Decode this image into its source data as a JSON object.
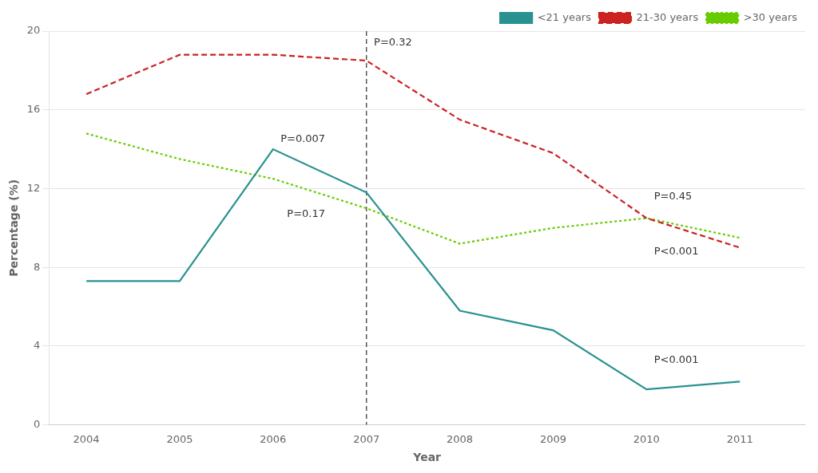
{
  "chart_data": {
    "type": "line",
    "x": [
      2004,
      2005,
      2006,
      2007,
      2008,
      2009,
      2010,
      2011
    ],
    "series": [
      {
        "name": "<21 years",
        "color": "#2a9191",
        "line_style": "solid",
        "values": [
          7.3,
          7.3,
          14.0,
          11.8,
          5.8,
          4.8,
          1.8,
          2.2
        ]
      },
      {
        "name": "21-30 years",
        "color": "#cc2222",
        "line_style": "dashed",
        "values": [
          16.8,
          18.8,
          18.8,
          18.5,
          15.5,
          13.8,
          10.5,
          9.0
        ]
      },
      {
        "name": ">30 years",
        "color": "#66cc00",
        "line_style": "dotted",
        "values": [
          14.8,
          13.5,
          12.5,
          11.0,
          9.2,
          10.0,
          10.5,
          9.5
        ]
      }
    ],
    "xlabel": "Year",
    "ylabel": "Percentage (%)",
    "xlim": [
      2003.6,
      2011.7
    ],
    "xticks": [
      2004,
      2005,
      2006,
      2007,
      2008,
      2009,
      2010,
      2011
    ],
    "ylim": [
      0,
      20
    ],
    "yticks": [
      0,
      4,
      8,
      12,
      16,
      20
    ],
    "vlines": [
      2007
    ],
    "annotations": [
      {
        "text": "P=0.32",
        "x": 2007.08,
        "y": 19.4
      },
      {
        "text": "P=0.007",
        "x": 2006.08,
        "y": 14.5
      },
      {
        "text": "P=0.17",
        "x": 2006.15,
        "y": 10.7
      },
      {
        "text": "P=0.45",
        "x": 2010.08,
        "y": 11.6
      },
      {
        "text": "P<0.001",
        "x": 2010.08,
        "y": 8.8
      },
      {
        "text": "P<0.001",
        "x": 2010.08,
        "y": 3.3
      }
    ],
    "grid": "y",
    "legend": "upper right"
  }
}
